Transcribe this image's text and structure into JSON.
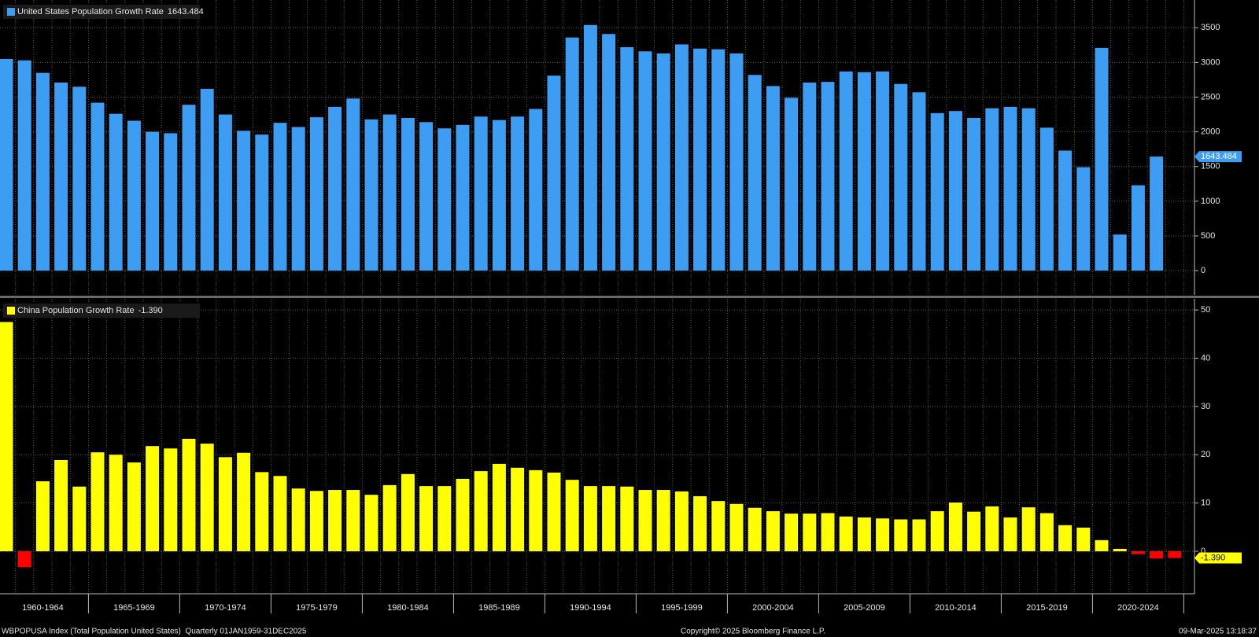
{
  "chart_data": [
    {
      "type": "bar",
      "legend": "upper left",
      "grid": true,
      "ylim": [
        -350,
        3900
      ],
      "yticks": [
        0,
        500,
        1000,
        1500,
        2000,
        2500,
        3000,
        3500
      ],
      "series": [
        {
          "name": "United States Population Growth Rate",
          "color": "#3d9df3",
          "values": [
            3050,
            3030,
            2850,
            2710,
            2650,
            2420,
            2260,
            2160,
            2000,
            1980,
            2390,
            2620,
            2250,
            2015,
            1960,
            2130,
            2070,
            2210,
            2360,
            2480,
            2180,
            2250,
            2200,
            2140,
            2050,
            2100,
            2220,
            2170,
            2220,
            2330,
            2810,
            3360,
            3540,
            3410,
            3220,
            3160,
            3130,
            3260,
            3200,
            3190,
            3130,
            2820,
            2660,
            2490,
            2710,
            2720,
            2870,
            2860,
            2870,
            2690,
            2570,
            2270,
            2300,
            2200,
            2340,
            2360,
            2340,
            2060,
            1730,
            1490,
            3210,
            520,
            1230,
            1643.484,
            null
          ]
        }
      ]
    },
    {
      "type": "bar",
      "legend": "upper left",
      "grid": true,
      "ylim": [
        -8.8,
        52.3
      ],
      "yticks": [
        0,
        10,
        20,
        30,
        40,
        50
      ],
      "categories": [
        null,
        null,
        "1960-1964",
        null,
        null,
        null,
        null,
        "1965-1969",
        null,
        null,
        null,
        null,
        "1970-1974",
        null,
        null,
        null,
        null,
        "1975-1979",
        null,
        null,
        null,
        null,
        "1980-1984",
        null,
        null,
        null,
        null,
        "1985-1989",
        null,
        null,
        null,
        null,
        "1990-1994",
        null,
        null,
        null,
        null,
        "1995-1999",
        null,
        null,
        null,
        null,
        "2000-2004",
        null,
        null,
        null,
        null,
        "2005-2009",
        null,
        null,
        null,
        null,
        "2010-2014",
        null,
        null,
        null,
        null,
        "2015-2019",
        null,
        null,
        null,
        null,
        "2020-2024",
        null,
        null
      ],
      "series": [
        {
          "name": "China Population Growth Rate",
          "color": "#ffff00",
          "negative_color": "#ff0000",
          "values": [
            47.5,
            -3.3,
            14.5,
            18.9,
            13.4,
            20.5,
            20.0,
            18.4,
            21.8,
            21.3,
            23.3,
            22.3,
            19.5,
            20.4,
            16.4,
            15.6,
            13.0,
            12.5,
            12.7,
            12.7,
            11.7,
            13.7,
            16.0,
            13.5,
            13.5,
            15.0,
            16.6,
            18.1,
            17.3,
            16.8,
            16.3,
            14.8,
            13.5,
            13.5,
            13.4,
            12.7,
            12.7,
            12.4,
            11.4,
            10.4,
            9.8,
            9.0,
            8.3,
            7.8,
            7.8,
            7.9,
            7.2,
            7.0,
            6.8,
            6.6,
            6.6,
            8.3,
            10.1,
            8.2,
            9.3,
            7.0,
            9.1,
            7.9,
            5.4,
            4.9,
            2.3,
            0.5,
            -0.6,
            -1.5,
            -1.39
          ],
          "value_labels": [
            null,
            null,
            null,
            null,
            null,
            null,
            null,
            null,
            null,
            null,
            null,
            null,
            null,
            null,
            null,
            null,
            null,
            null,
            null,
            null,
            null,
            null,
            null,
            null,
            null,
            null,
            null,
            null,
            null,
            null,
            null,
            null,
            null,
            null,
            null,
            null,
            null,
            null,
            null,
            null,
            null,
            null,
            null,
            null,
            null,
            null,
            null,
            null,
            null,
            null,
            null,
            null,
            null,
            null,
            null,
            null,
            null,
            null,
            null,
            null,
            null,
            null,
            null,
            null,
            "-1.390"
          ]
        }
      ]
    }
  ],
  "footer": {
    "left": "WBPOPUSA Index (Total Population United States)  Quarterly 01JAN1959-31DEC2025",
    "center": "Copyright© 2025 Bloomberg Finance L.P.",
    "right": "09-Mar-2025 13:18:37"
  }
}
